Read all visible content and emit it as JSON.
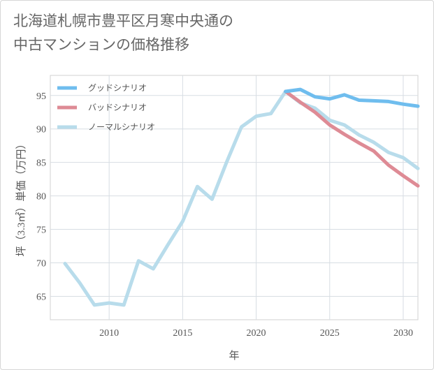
{
  "title_lines": [
    "北海道札幌市豊平区月寒中央通の",
    "中古マンションの価格推移"
  ],
  "chart_data": {
    "type": "line",
    "title": "北海道札幌市豊平区月寒中央通の中古マンションの価格推移",
    "xlabel": "年",
    "ylabel": "坪（3.3㎡）単価（万円）",
    "xlim": [
      2006,
      2031
    ],
    "ylim": [
      61.5,
      98
    ],
    "x_ticks": [
      2010,
      2015,
      2020,
      2025,
      2030
    ],
    "y_ticks": [
      65,
      70,
      75,
      80,
      85,
      90,
      95
    ],
    "grid": true,
    "legend_position": "top-left",
    "series": [
      {
        "name": "グッドシナリオ",
        "color": "#6fbdee",
        "points": [
          [
            2022,
            95.6
          ],
          [
            2023,
            95.9
          ],
          [
            2024,
            94.8
          ],
          [
            2025,
            94.5
          ],
          [
            2026,
            95.1
          ],
          [
            2027,
            94.3
          ],
          [
            2028,
            94.2
          ],
          [
            2029,
            94.1
          ],
          [
            2030,
            93.7
          ],
          [
            2031,
            93.4
          ]
        ]
      },
      {
        "name": "バッドシナリオ",
        "color": "#de8b95",
        "points": [
          [
            2022,
            95.6
          ],
          [
            2023,
            94.0
          ],
          [
            2024,
            92.5
          ],
          [
            2025,
            90.6
          ],
          [
            2026,
            89.2
          ],
          [
            2027,
            87.9
          ],
          [
            2028,
            86.7
          ],
          [
            2029,
            84.6
          ],
          [
            2030,
            83.0
          ],
          [
            2031,
            81.5
          ]
        ]
      },
      {
        "name": "ノーマルシナリオ",
        "color": "#b8dceb",
        "points": [
          [
            2007,
            69.9
          ],
          [
            2008,
            67.0
          ],
          [
            2009,
            63.7
          ],
          [
            2010,
            64.0
          ],
          [
            2011,
            63.7
          ],
          [
            2012,
            70.3
          ],
          [
            2013,
            69.1
          ],
          [
            2014,
            72.7
          ],
          [
            2015,
            76.2
          ],
          [
            2016,
            81.4
          ],
          [
            2017,
            79.5
          ],
          [
            2018,
            85.1
          ],
          [
            2019,
            90.3
          ],
          [
            2020,
            91.9
          ],
          [
            2021,
            92.3
          ],
          [
            2022,
            95.6
          ],
          [
            2023,
            93.9
          ],
          [
            2024,
            93.1
          ],
          [
            2025,
            91.3
          ],
          [
            2026,
            90.6
          ],
          [
            2027,
            89.1
          ],
          [
            2028,
            88.0
          ],
          [
            2029,
            86.5
          ],
          [
            2030,
            85.7
          ],
          [
            2031,
            84.1
          ]
        ]
      }
    ]
  }
}
